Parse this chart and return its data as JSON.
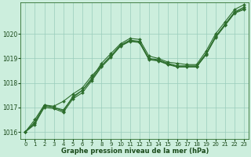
{
  "bg_color": "#cceedd",
  "grid_color": "#99ccbb",
  "line_color": "#2d6e2d",
  "text_color": "#1a4a1a",
  "xlabel": "Graphe pression niveau de la mer (hPa)",
  "xlim": [
    -0.5,
    23.5
  ],
  "ylim": [
    1015.7,
    1021.3
  ],
  "yticks": [
    1016,
    1017,
    1018,
    1019,
    1020
  ],
  "xticks": [
    0,
    1,
    2,
    3,
    4,
    5,
    6,
    7,
    8,
    9,
    10,
    11,
    12,
    13,
    14,
    15,
    16,
    17,
    18,
    19,
    20,
    21,
    22,
    23
  ],
  "series": [
    [
      1016.0,
      1016.4,
      1017.1,
      1017.0,
      1016.85,
      1017.45,
      1017.7,
      1018.2,
      1018.8,
      1019.2,
      1019.6,
      1019.82,
      1019.78,
      1019.1,
      1019.0,
      1018.85,
      1018.8,
      1018.75,
      1018.75,
      1019.3,
      1020.0,
      1020.5,
      1021.0,
      1021.2
    ],
    [
      1016.0,
      1016.5,
      1017.1,
      1017.05,
      1017.25,
      1017.55,
      1017.8,
      1018.3,
      1018.7,
      1019.1,
      1019.55,
      1019.75,
      1019.7,
      1019.0,
      1018.95,
      1018.8,
      1018.7,
      1018.7,
      1018.7,
      1019.2,
      1019.9,
      1020.4,
      1020.9,
      1021.1
    ],
    [
      1016.0,
      1016.35,
      1017.0,
      1016.95,
      1016.8,
      1017.35,
      1017.6,
      1018.1,
      1018.65,
      1019.05,
      1019.5,
      1019.7,
      1019.65,
      1018.95,
      1018.9,
      1018.75,
      1018.65,
      1018.65,
      1018.65,
      1019.15,
      1019.85,
      1020.35,
      1020.85,
      1021.0
    ],
    [
      1016.0,
      1016.3,
      1017.05,
      1017.0,
      1016.9,
      1017.4,
      1017.7,
      1018.15,
      1018.7,
      1019.1,
      1019.52,
      1019.72,
      1019.67,
      1018.97,
      1018.92,
      1018.77,
      1018.67,
      1018.67,
      1018.67,
      1019.17,
      1019.87,
      1020.37,
      1020.87,
      1021.05
    ]
  ],
  "marker": "D",
  "markersize": 2.0,
  "linewidth": 0.8,
  "tick_fontsize": 5.0,
  "xlabel_fontsize": 6.0,
  "ytick_fontsize": 5.5
}
